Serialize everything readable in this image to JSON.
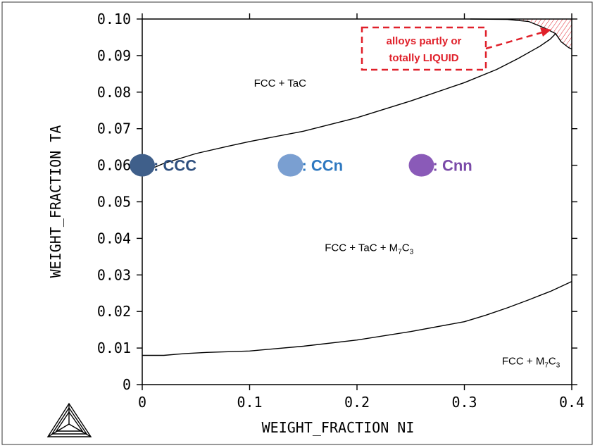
{
  "chart_data": {
    "type": "line",
    "title": "",
    "xlabel": "WEIGHT_FRACTION NI",
    "ylabel": "WEIGHT_FRACTION TA",
    "xlim": [
      0,
      0.4
    ],
    "ylim": [
      0,
      0.1
    ],
    "x_ticks": [
      "0",
      "0.1",
      "0.2",
      "0.3",
      "0.4"
    ],
    "y_ticks": [
      "0",
      "0.01",
      "0.02",
      "0.03",
      "0.04",
      "0.05",
      "0.06",
      "0.07",
      "0.08",
      "0.09",
      "0.10"
    ],
    "grid": false,
    "series": [
      {
        "points": [
          [
            0,
            0.058
          ],
          [
            0.02,
            0.0605
          ],
          [
            0.05,
            0.0632
          ],
          [
            0.08,
            0.0652
          ],
          [
            0.1,
            0.0665
          ],
          [
            0.15,
            0.0693
          ],
          [
            0.2,
            0.073
          ],
          [
            0.25,
            0.0776
          ],
          [
            0.3,
            0.0826
          ],
          [
            0.33,
            0.0862
          ],
          [
            0.35,
            0.0892
          ],
          [
            0.37,
            0.0925
          ],
          [
            0.38,
            0.0945
          ]
        ]
      },
      {
        "points": [
          [
            0.3055,
            0.1
          ],
          [
            0.34,
            0.0999
          ],
          [
            0.36,
            0.0993
          ],
          [
            0.375,
            0.0975
          ],
          [
            0.385,
            0.096
          ]
        ]
      },
      {
        "points": [
          [
            0.38,
            0.0945
          ],
          [
            0.385,
            0.096
          ],
          [
            0.39,
            0.0938
          ],
          [
            0.397,
            0.0922
          ],
          [
            0.4,
            0.0918
          ]
        ]
      },
      {
        "points": [
          [
            0,
            0.008
          ],
          [
            0.02,
            0.008
          ],
          [
            0.04,
            0.0085
          ],
          [
            0.06,
            0.0088
          ],
          [
            0.1,
            0.0092
          ],
          [
            0.15,
            0.0105
          ],
          [
            0.2,
            0.0122
          ],
          [
            0.25,
            0.0145
          ],
          [
            0.3,
            0.0172
          ],
          [
            0.32,
            0.019
          ],
          [
            0.34,
            0.021
          ],
          [
            0.36,
            0.0232
          ],
          [
            0.38,
            0.0255
          ],
          [
            0.4,
            0.0282
          ]
        ]
      }
    ],
    "liquid_region": {
      "polygon": [
        [
          0.3055,
          0.1
        ],
        [
          0.4,
          0.1
        ],
        [
          0.4,
          0.0918
        ],
        [
          0.397,
          0.0922
        ],
        [
          0.39,
          0.0938
        ],
        [
          0.385,
          0.096
        ],
        [
          0.375,
          0.0975
        ],
        [
          0.36,
          0.0993
        ],
        [
          0.34,
          0.0999
        ]
      ],
      "hatch_color": "#e0202a"
    },
    "phase_labels": [
      {
        "x": 0.104,
        "y": 0.0815,
        "text": "FCC + TaC"
      },
      {
        "x": 0.17,
        "y": 0.0365,
        "text": "FCC + TaC + M7C3"
      },
      {
        "x": 0.335,
        "y": 0.0055,
        "text": "FCC + M7C3"
      }
    ],
    "markers": [
      {
        "x": 0,
        "y": 0.06,
        "label": ": CCC",
        "fill": "#3f5f8a",
        "text_color": "#2e4f7e"
      },
      {
        "x": 0.138,
        "y": 0.06,
        "label": ": CCn",
        "fill": "#7a9fd1",
        "text_color": "#2e78c0"
      },
      {
        "x": 0.26,
        "y": 0.06,
        "label": ": Cnn",
        "fill": "#8a5ab8",
        "text_color": "#7a4aa8"
      }
    ],
    "annotation": {
      "lines": [
        "alloys partly or",
        "totally LIQUID"
      ],
      "color": "#e0202a"
    }
  }
}
